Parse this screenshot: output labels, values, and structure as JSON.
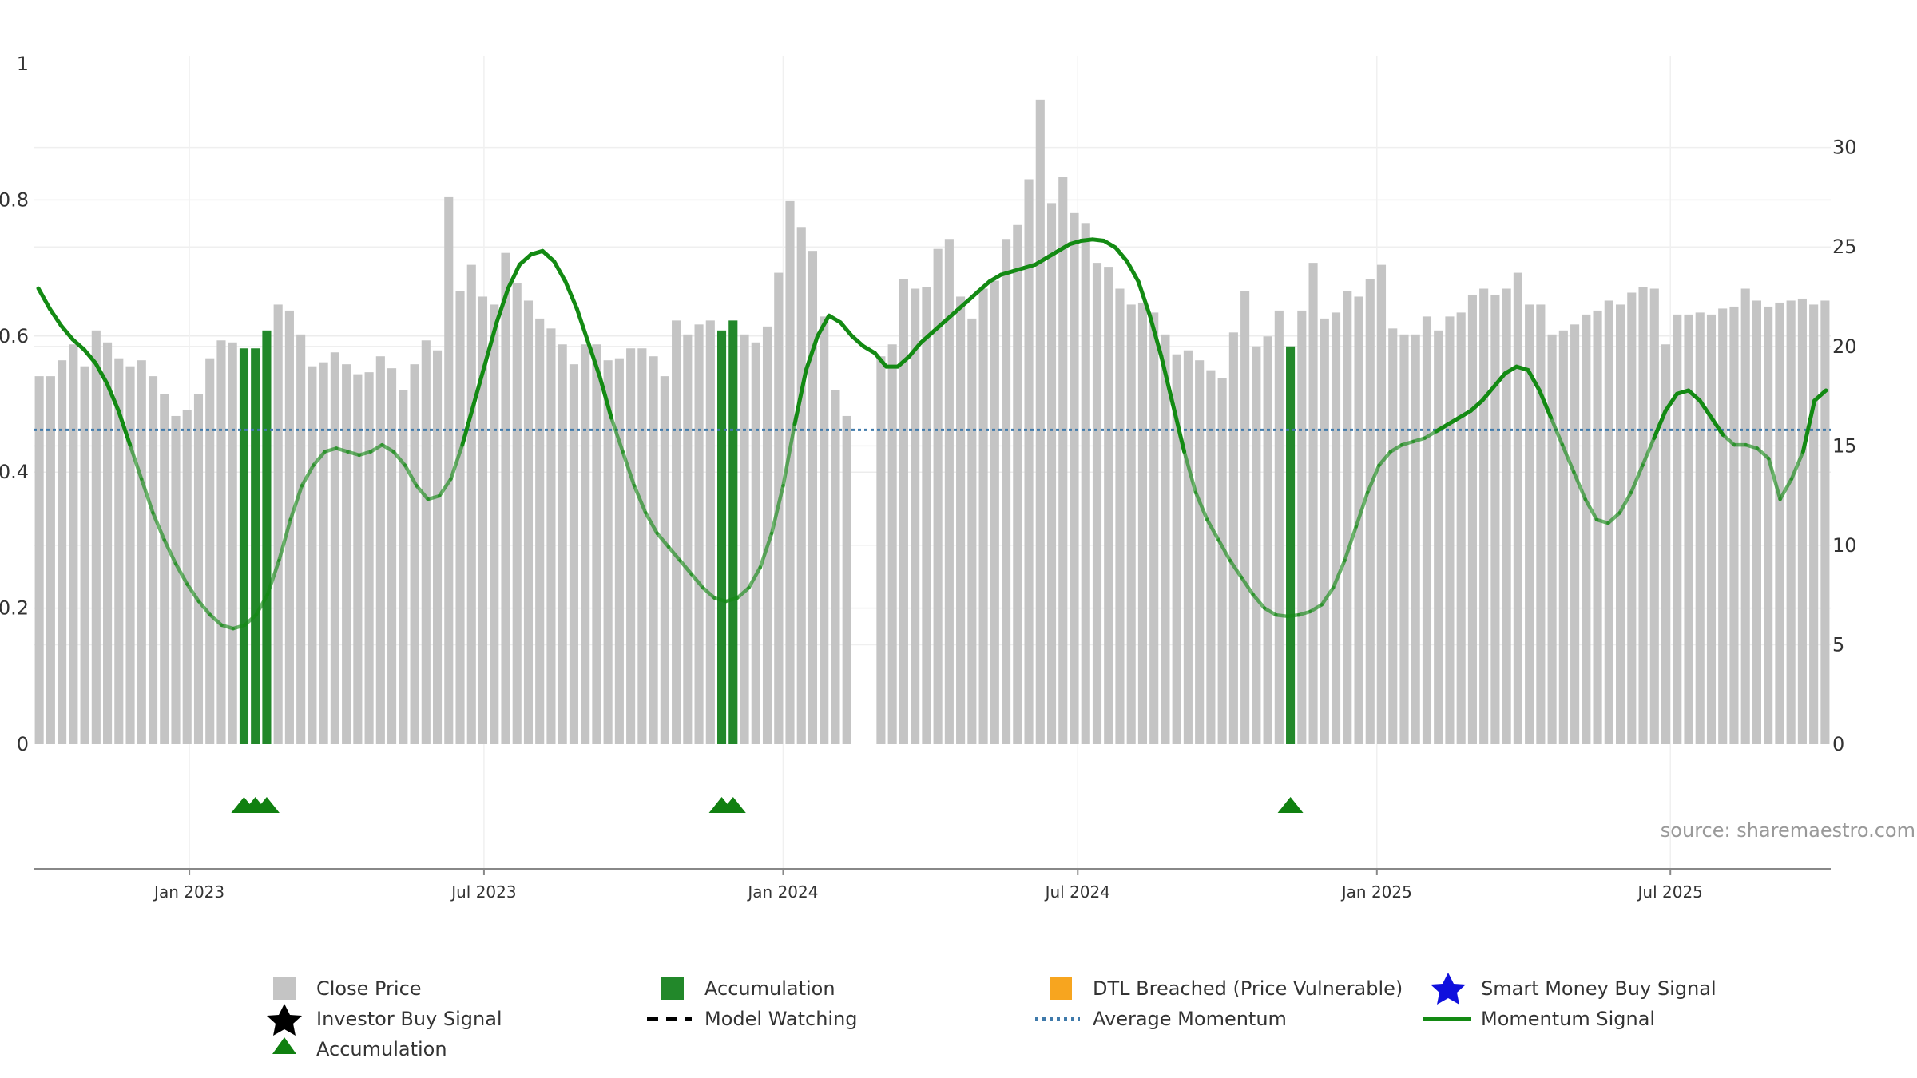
{
  "source_note": "source: sharemaestro.com",
  "colors": {
    "price_bar": "#c4c4c4",
    "accumulation_bar": "#22882a",
    "momentum_line": "#138a13",
    "average_line": "#3f7aab",
    "triangle": "#108010",
    "star_investor": "#000000",
    "star_smart_money": "#1010dd",
    "dtl": "#f7a51f"
  },
  "chart_data": {
    "type": "bar+line",
    "title": "",
    "left_axis": {
      "range": [
        0,
        1
      ],
      "ticks": [
        "0",
        "0.2",
        "0.4",
        "0.6",
        "0.8",
        "1"
      ],
      "tick_values": [
        0,
        0.2,
        0.4,
        0.6,
        0.8,
        1
      ]
    },
    "right_axis": {
      "range": [
        0,
        34.2
      ],
      "ticks": [
        "0",
        "5",
        "10",
        "15",
        "20",
        "25",
        "30"
      ],
      "tick_values": [
        0,
        5,
        10,
        15,
        20,
        25,
        30
      ]
    },
    "x_axis": {
      "start_week": 0,
      "end_week": 152,
      "ticks": [
        {
          "label": "Jan 2023",
          "week": 13.7
        },
        {
          "label": "Jul 2023",
          "week": 39.6
        },
        {
          "label": "Jan 2024",
          "week": 65.9
        },
        {
          "label": "Jul 2024",
          "week": 91.8
        },
        {
          "label": "Jan 2025",
          "week": 118.1
        },
        {
          "label": "Jul 2025",
          "week": 143.9
        }
      ]
    },
    "grid": true,
    "close_price": {
      "name": "Close Price",
      "values": [
        18.5,
        18.5,
        19.3,
        20.1,
        19,
        20.8,
        20.2,
        19.4,
        19,
        19.3,
        18.5,
        17.6,
        16.5,
        16.8,
        17.6,
        19.4,
        20.3,
        20.2,
        19.9,
        19.9,
        20.8,
        22.1,
        21.8,
        20.6,
        19,
        19.2,
        19.7,
        19.1,
        18.6,
        18.7,
        19.5,
        18.9,
        17.8,
        19.1,
        20.3,
        19.8,
        27.5,
        22.8,
        24.1,
        22.5,
        22.1,
        24.7,
        23.2,
        22.3,
        21.4,
        20.9,
        20.1,
        19.1,
        20.1,
        20.1,
        19.3,
        19.4,
        19.9,
        19.9,
        19.5,
        18.5,
        21.3,
        20.6,
        21.1,
        21.3,
        20.8,
        21.3,
        20.6,
        20.2,
        21,
        23.7,
        27.3,
        26,
        24.8,
        21.5,
        17.8,
        16.5,
        null,
        null,
        19.5,
        20.1,
        23.4,
        22.9,
        23,
        24.9,
        25.4,
        22.5,
        21.4,
        22.9,
        23.3,
        25.4,
        26.1,
        28.4,
        32.4,
        27.2,
        28.5,
        26.7,
        26.2,
        24.2,
        24,
        22.9,
        22.1,
        22.2,
        21.7,
        20.6,
        19.6,
        19.8,
        19.3,
        18.8,
        18.4,
        20.7,
        22.8,
        20,
        20.5,
        21.8,
        20,
        21.8,
        24.2,
        21.4,
        21.7,
        22.8,
        22.5,
        23.4,
        24.1,
        20.9,
        20.6,
        20.6,
        21.5,
        20.8,
        21.5,
        21.7,
        22.6,
        22.9,
        22.6,
        22.9,
        23.7,
        22.1,
        22.1,
        20.6,
        20.8,
        21.1,
        21.6,
        21.8,
        22.3,
        22.1,
        22.7,
        23,
        22.9,
        20.1,
        21.6,
        21.6,
        21.7,
        21.6,
        21.9,
        22,
        22.9,
        22.3,
        22,
        22.2,
        22.3,
        22.4,
        22.1,
        22.3
      ],
      "color": "#c4c4c4"
    },
    "accumulation_weeks": [
      18,
      19,
      20,
      60,
      61,
      110
    ],
    "momentum_signal": {
      "name": "Momentum Signal",
      "points": [
        [
          0,
          0.67
        ],
        [
          1,
          0.64
        ],
        [
          2,
          0.615
        ],
        [
          3,
          0.595
        ],
        [
          4,
          0.58
        ],
        [
          5,
          0.56
        ],
        [
          6,
          0.53
        ],
        [
          7,
          0.49
        ],
        [
          8,
          0.44
        ],
        [
          9,
          0.39
        ],
        [
          10,
          0.34
        ],
        [
          11,
          0.3
        ],
        [
          12,
          0.265
        ],
        [
          13,
          0.235
        ],
        [
          14,
          0.21
        ],
        [
          15,
          0.19
        ],
        [
          16,
          0.175
        ],
        [
          17,
          0.17
        ],
        [
          18,
          0.175
        ],
        [
          19,
          0.19
        ],
        [
          20,
          0.22
        ],
        [
          21,
          0.27
        ],
        [
          22,
          0.33
        ],
        [
          23,
          0.38
        ],
        [
          24,
          0.41
        ],
        [
          25,
          0.43
        ],
        [
          26,
          0.435
        ],
        [
          27,
          0.43
        ],
        [
          28,
          0.425
        ],
        [
          29,
          0.43
        ],
        [
          30,
          0.44
        ],
        [
          31,
          0.43
        ],
        [
          32,
          0.41
        ],
        [
          33,
          0.38
        ],
        [
          34,
          0.36
        ],
        [
          35,
          0.365
        ],
        [
          36,
          0.39
        ],
        [
          37,
          0.44
        ],
        [
          38,
          0.5
        ],
        [
          39,
          0.56
        ],
        [
          40,
          0.62
        ],
        [
          41,
          0.67
        ],
        [
          42,
          0.705
        ],
        [
          43,
          0.72
        ],
        [
          44,
          0.725
        ],
        [
          45,
          0.71
        ],
        [
          46,
          0.68
        ],
        [
          47,
          0.64
        ],
        [
          48,
          0.59
        ],
        [
          49,
          0.54
        ],
        [
          50,
          0.48
        ],
        [
          51,
          0.43
        ],
        [
          52,
          0.38
        ],
        [
          53,
          0.34
        ],
        [
          54,
          0.31
        ],
        [
          55,
          0.29
        ],
        [
          56,
          0.27
        ],
        [
          57,
          0.25
        ],
        [
          58,
          0.23
        ],
        [
          59,
          0.215
        ],
        [
          60,
          0.21
        ],
        [
          61,
          0.215
        ],
        [
          62,
          0.23
        ],
        [
          63,
          0.26
        ],
        [
          64,
          0.31
        ],
        [
          65,
          0.38
        ],
        [
          66,
          0.47
        ],
        [
          67,
          0.55
        ],
        [
          68,
          0.6
        ],
        [
          69,
          0.63
        ],
        [
          70,
          0.62
        ],
        [
          71,
          0.6
        ],
        [
          72,
          0.585
        ],
        [
          73,
          0.575
        ],
        [
          74,
          0.555
        ],
        [
          75,
          0.555
        ],
        [
          76,
          0.57
        ],
        [
          77,
          0.59
        ],
        [
          78,
          0.605
        ],
        [
          79,
          0.62
        ],
        [
          80,
          0.635
        ],
        [
          81,
          0.65
        ],
        [
          82,
          0.665
        ],
        [
          83,
          0.68
        ],
        [
          84,
          0.69
        ],
        [
          85,
          0.695
        ],
        [
          86,
          0.7
        ],
        [
          87,
          0.705
        ],
        [
          88,
          0.715
        ],
        [
          89,
          0.725
        ],
        [
          90,
          0.735
        ],
        [
          91,
          0.74
        ],
        [
          92,
          0.742
        ],
        [
          93,
          0.74
        ],
        [
          94,
          0.73
        ],
        [
          95,
          0.71
        ],
        [
          96,
          0.68
        ],
        [
          97,
          0.63
        ],
        [
          98,
          0.57
        ],
        [
          99,
          0.5
        ],
        [
          100,
          0.43
        ],
        [
          101,
          0.37
        ],
        [
          102,
          0.33
        ],
        [
          103,
          0.3
        ],
        [
          104,
          0.27
        ],
        [
          105,
          0.245
        ],
        [
          106,
          0.22
        ],
        [
          107,
          0.2
        ],
        [
          108,
          0.19
        ],
        [
          109,
          0.188
        ],
        [
          110,
          0.19
        ],
        [
          111,
          0.195
        ],
        [
          112,
          0.205
        ],
        [
          113,
          0.23
        ],
        [
          114,
          0.27
        ],
        [
          115,
          0.32
        ],
        [
          116,
          0.37
        ],
        [
          117,
          0.41
        ],
        [
          118,
          0.43
        ],
        [
          119,
          0.44
        ],
        [
          120,
          0.445
        ],
        [
          121,
          0.45
        ],
        [
          122,
          0.46
        ],
        [
          123,
          0.47
        ],
        [
          124,
          0.48
        ],
        [
          125,
          0.49
        ],
        [
          126,
          0.505
        ],
        [
          127,
          0.525
        ],
        [
          128,
          0.545
        ],
        [
          129,
          0.555
        ],
        [
          130,
          0.55
        ],
        [
          131,
          0.52
        ],
        [
          132,
          0.48
        ],
        [
          133,
          0.44
        ],
        [
          134,
          0.4
        ],
        [
          135,
          0.36
        ],
        [
          136,
          0.33
        ],
        [
          137,
          0.325
        ],
        [
          138,
          0.34
        ],
        [
          139,
          0.37
        ],
        [
          140,
          0.41
        ],
        [
          141,
          0.45
        ],
        [
          142,
          0.49
        ],
        [
          143,
          0.515
        ],
        [
          144,
          0.52
        ],
        [
          145,
          0.505
        ],
        [
          146,
          0.48
        ],
        [
          147,
          0.455
        ],
        [
          148,
          0.44
        ],
        [
          149,
          0.44
        ],
        [
          150,
          0.435
        ],
        [
          151,
          0.42
        ],
        [
          152,
          0.36
        ],
        [
          153,
          0.39
        ],
        [
          154,
          0.43
        ],
        [
          155,
          0.505
        ],
        [
          156,
          0.52
        ]
      ],
      "color": "#138a13"
    },
    "average_momentum": {
      "name": "Average Momentum",
      "value": 0.462,
      "color": "#3f7aab"
    },
    "accumulation_triangles_weeks": [
      18,
      19,
      20,
      60,
      61,
      110
    ],
    "legend": [
      {
        "label": "Close Price",
        "marker": "square-gray"
      },
      {
        "label": "Accumulation",
        "marker": "square-green"
      },
      {
        "label": "DTL Breached (Price Vulnerable)",
        "marker": "square-orange"
      },
      {
        "label": "Smart Money Buy Signal",
        "marker": "star-blue"
      },
      {
        "label": "Investor Buy Signal",
        "marker": "star-black"
      },
      {
        "label": "Model Watching",
        "marker": "dash-black"
      },
      {
        "label": "Average Momentum",
        "marker": "dotted-blue"
      },
      {
        "label": "Momentum Signal",
        "marker": "line-green"
      },
      {
        "label": "Accumulation",
        "marker": "triangle-green"
      }
    ]
  }
}
